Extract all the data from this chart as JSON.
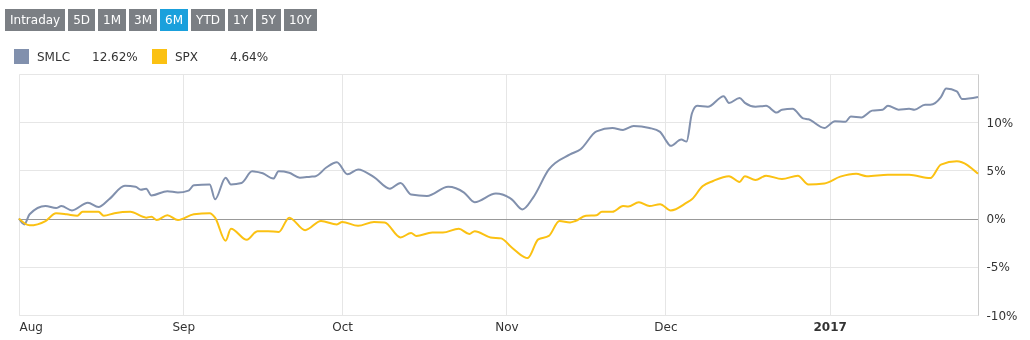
{
  "chart_data": {
    "type": "line",
    "annotations": [
      "Intraday",
      "5D",
      "1M",
      "3M",
      "6M",
      "YTD",
      "1Y",
      "5Y",
      "10Y",
      "12.62%",
      "4.64%"
    ],
    "series": [
      {
        "name": "SMLC",
        "color": "#8190ad",
        "x": [
          "2016-08-01",
          "2016-08-02",
          "2016-08-03",
          "2016-08-06",
          "2016-08-08",
          "2016-08-09",
          "2016-08-11",
          "2016-08-14",
          "2016-08-16",
          "2016-08-18",
          "2016-08-21",
          "2016-08-23",
          "2016-08-24",
          "2016-08-25",
          "2016-08-26",
          "2016-08-29",
          "2016-08-31",
          "2016-09-02",
          "2016-09-03",
          "2016-09-06",
          "2016-09-07",
          "2016-09-09",
          "2016-09-10",
          "2016-09-12",
          "2016-09-14",
          "2016-09-16",
          "2016-09-18",
          "2016-09-19",
          "2016-09-21",
          "2016-09-23",
          "2016-09-25",
          "2016-09-26",
          "2016-09-28",
          "2016-09-30",
          "2016-10-02",
          "2016-10-04",
          "2016-10-07",
          "2016-10-10",
          "2016-10-12",
          "2016-10-14",
          "2016-10-17",
          "2016-10-21",
          "2016-10-24",
          "2016-10-26",
          "2016-10-30",
          "2016-11-02",
          "2016-11-04",
          "2016-11-06",
          "2016-11-09",
          "2016-11-13",
          "2016-11-15",
          "2016-11-18",
          "2016-11-21",
          "2016-11-23",
          "2016-11-25",
          "2016-11-28",
          "2016-11-30",
          "2016-12-01",
          "2016-12-02",
          "2016-12-04",
          "2016-12-05",
          "2016-12-06",
          "2016-12-07",
          "2016-12-09",
          "2016-12-12",
          "2016-12-13",
          "2016-12-15",
          "2016-12-16",
          "2016-12-18",
          "2016-12-20",
          "2016-12-22",
          "2016-12-23",
          "2016-12-25",
          "2016-12-27",
          "2016-12-28",
          "2016-12-31",
          "2017-01-02",
          "2017-01-04",
          "2017-01-05",
          "2017-01-07",
          "2017-01-09",
          "2017-01-11",
          "2017-01-12",
          "2017-01-14",
          "2017-01-16",
          "2017-01-17",
          "2017-01-19",
          "2017-01-20",
          "2017-01-22",
          "2017-01-23",
          "2017-01-25",
          "2017-01-26",
          "2017-01-29"
        ],
        "values": [
          0,
          -0.6,
          0.45,
          1.3,
          1.1,
          1.3,
          0.85,
          1.65,
          1.2,
          2.0,
          3.4,
          3.3,
          3.0,
          3.1,
          2.4,
          2.85,
          2.7,
          2.9,
          3.45,
          3.55,
          2.0,
          4.25,
          3.55,
          3.7,
          4.9,
          4.7,
          4.15,
          4.9,
          4.75,
          4.25,
          4.35,
          4.4,
          5.3,
          5.85,
          4.6,
          5.1,
          4.3,
          3.1,
          3.7,
          2.5,
          2.35,
          3.3,
          2.7,
          1.7,
          2.6,
          2.0,
          0.95,
          2.15,
          5.1,
          6.65,
          7.2,
          9.05,
          9.4,
          9.2,
          9.6,
          9.4,
          9.0,
          8.2,
          7.55,
          8.2,
          8.0,
          10.9,
          11.7,
          11.6,
          12.7,
          12.0,
          12.5,
          12.0,
          11.6,
          11.7,
          11.0,
          11.3,
          11.4,
          10.4,
          10.3,
          9.4,
          10.1,
          10.05,
          10.6,
          10.5,
          11.2,
          11.3,
          11.7,
          11.3,
          11.4,
          11.3,
          11.8,
          11.8,
          12.6,
          13.5,
          13.2,
          12.4,
          12.62
        ]
      },
      {
        "name": "SPX",
        "color": "#fbc112",
        "x": [
          "2016-08-01",
          "2016-08-03",
          "2016-08-06",
          "2016-08-08",
          "2016-08-10",
          "2016-08-12",
          "2016-08-13",
          "2016-08-16",
          "2016-08-17",
          "2016-08-19",
          "2016-08-22",
          "2016-08-25",
          "2016-08-26",
          "2016-08-27",
          "2016-08-29",
          "2016-08-31",
          "2016-09-03",
          "2016-09-06",
          "2016-09-07",
          "2016-09-09",
          "2016-09-10",
          "2016-09-13",
          "2016-09-15",
          "2016-09-17",
          "2016-09-19",
          "2016-09-21",
          "2016-09-24",
          "2016-09-27",
          "2016-09-30",
          "2016-10-01",
          "2016-10-04",
          "2016-10-07",
          "2016-10-09",
          "2016-10-12",
          "2016-10-14",
          "2016-10-15",
          "2016-10-18",
          "2016-10-20",
          "2016-10-23",
          "2016-10-25",
          "2016-10-26",
          "2016-10-29",
          "2016-10-31",
          "2016-11-02",
          "2016-11-05",
          "2016-11-07",
          "2016-11-09",
          "2016-11-11",
          "2016-11-13",
          "2016-11-14",
          "2016-11-16",
          "2016-11-18",
          "2016-11-19",
          "2016-11-21",
          "2016-11-23",
          "2016-11-24",
          "2016-11-26",
          "2016-11-28",
          "2016-11-30",
          "2016-12-02",
          "2016-12-05",
          "2016-12-06",
          "2016-12-08",
          "2016-12-10",
          "2016-12-13",
          "2016-12-15",
          "2016-12-16",
          "2016-12-18",
          "2016-12-20",
          "2016-12-23",
          "2016-12-26",
          "2016-12-28",
          "2016-12-31",
          "2017-01-03",
          "2017-01-06",
          "2017-01-08",
          "2017-01-12",
          "2017-01-16",
          "2017-01-20",
          "2017-01-22",
          "2017-01-25",
          "2017-01-29"
        ],
        "values": [
          0,
          -0.7,
          -0.25,
          0.55,
          0.45,
          0.3,
          0.7,
          0.7,
          0.3,
          0.55,
          0.7,
          0.1,
          0.2,
          -0.15,
          0.35,
          -0.15,
          0.45,
          0.55,
          0.1,
          -2.3,
          -1.05,
          -2.2,
          -1.3,
          -1.3,
          -1.4,
          0.1,
          -1.2,
          -0.25,
          -0.6,
          -0.35,
          -0.75,
          -0.35,
          -0.4,
          -1.95,
          -1.5,
          -1.8,
          -1.45,
          -1.45,
          -1.05,
          -1.6,
          -1.3,
          -1.95,
          -2.05,
          -3.0,
          -4.1,
          -2.15,
          -1.8,
          -0.25,
          -0.4,
          -0.25,
          0.3,
          0.35,
          0.7,
          0.7,
          1.3,
          1.25,
          1.7,
          1.3,
          1.5,
          0.85,
          1.65,
          2.0,
          3.35,
          3.9,
          4.4,
          3.8,
          4.4,
          4.0,
          4.45,
          4.1,
          4.45,
          3.55,
          3.65,
          4.35,
          4.65,
          4.4,
          4.55,
          4.55,
          4.2,
          5.6,
          5.95,
          4.64
        ]
      }
    ],
    "xlim": [
      "2016-08-01",
      "2017-01-29"
    ],
    "xticks": [
      {
        "value": "2016-08-01",
        "label": "Aug"
      },
      {
        "value": "2016-09-01",
        "label": "Sep"
      },
      {
        "value": "2016-10-01",
        "label": "Oct"
      },
      {
        "value": "2016-11-01",
        "label": "Nov"
      },
      {
        "value": "2016-12-01",
        "label": "Dec"
      },
      {
        "value": "2017-01-01",
        "label": "2017"
      }
    ],
    "ylim": [
      -10,
      15
    ],
    "yticks": [
      {
        "value": -10,
        "label": "-10%"
      },
      {
        "value": -5,
        "label": "-5%"
      },
      {
        "value": 0,
        "label": "0%"
      },
      {
        "value": 5,
        "label": "5%"
      },
      {
        "value": 10,
        "label": "10%"
      }
    ],
    "grid": true,
    "legend": "top left",
    "marker": "none",
    "line_style": "solid"
  }
}
